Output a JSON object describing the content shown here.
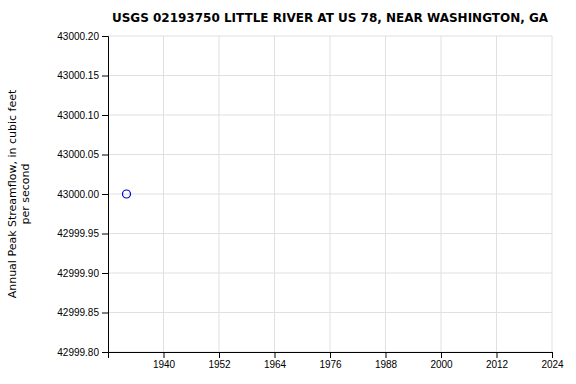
{
  "chart_data": {
    "type": "scatter",
    "title": "USGS 02193750 LITTLE RIVER AT US 78, NEAR WASHINGTON, GA",
    "y_label": "Annual Peak Streamflow, in cubic feet\nper second",
    "x": [
      1932
    ],
    "values": [
      43000.0
    ],
    "color": "#0000cc",
    "marker": "open-circle",
    "xlim": [
      1928,
      2024
    ],
    "ylim": [
      42999.8,
      43000.2
    ],
    "xticks": [
      1940,
      1952,
      1964,
      1976,
      1988,
      2000,
      2012,
      2024
    ],
    "yticks": [
      {
        "value": 42999.8,
        "label": "42999.80"
      },
      42999.85,
      {
        "value": 42999.9,
        "label": "42999.90"
      },
      42999.95,
      {
        "value": 43000.0,
        "label": "43000.00"
      },
      43000.05,
      {
        "value": 43000.1,
        "label": "43000.10"
      },
      43000.15,
      {
        "value": 43000.2,
        "label": "43000.20"
      }
    ],
    "grid": true
  }
}
